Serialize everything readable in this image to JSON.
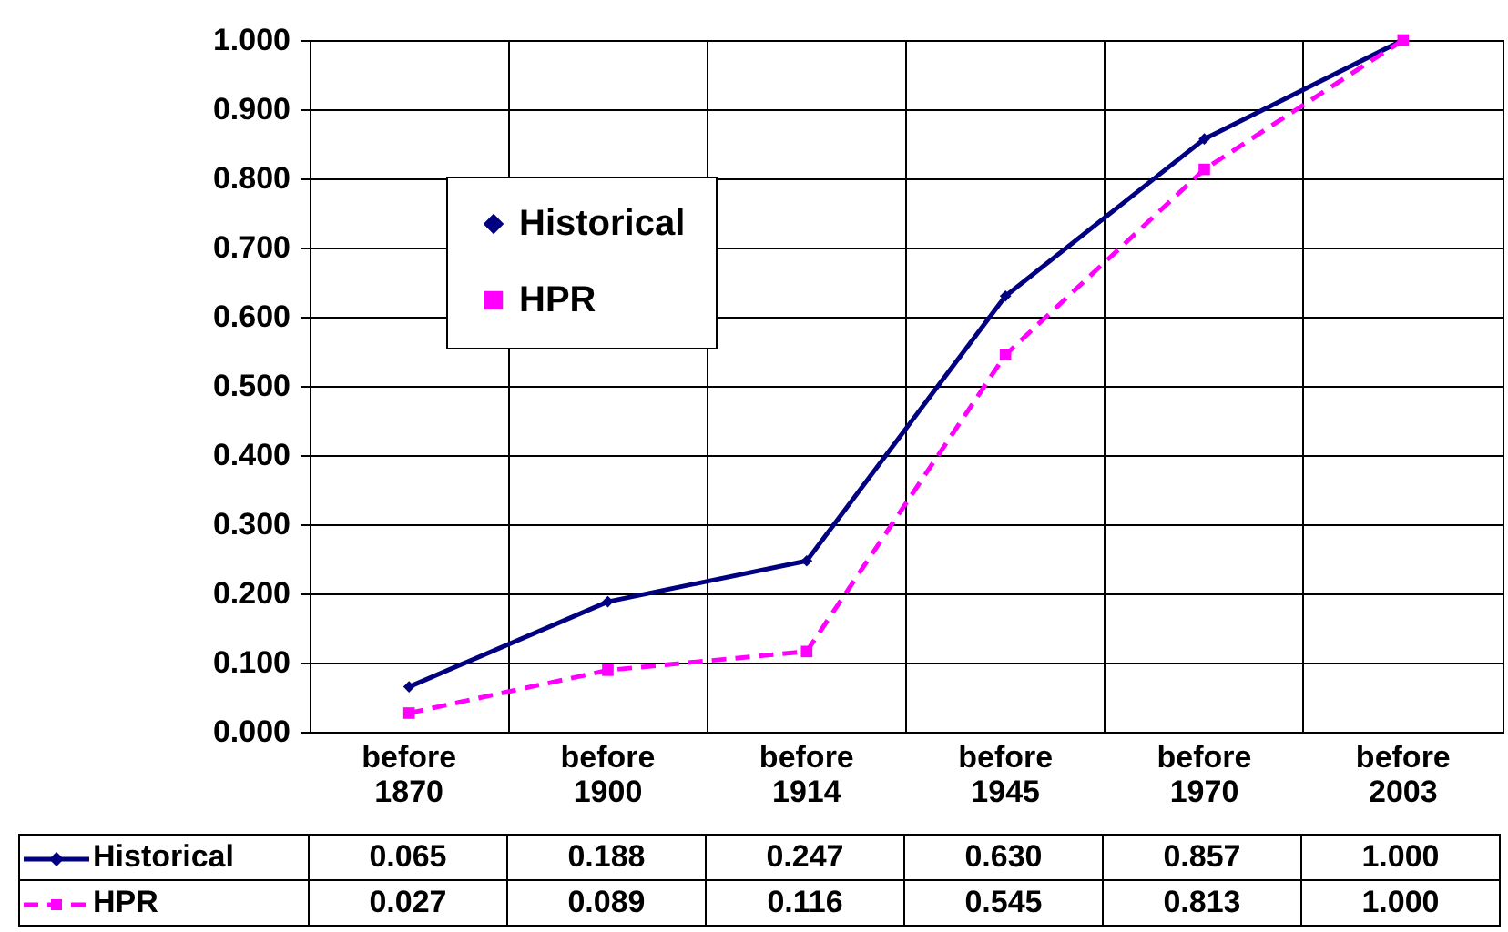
{
  "chart_data": {
    "type": "line",
    "categories": [
      "before 1870",
      "before 1900",
      "before 1914",
      "before 1945",
      "before 1970",
      "before 2003"
    ],
    "series": [
      {
        "name": "Historical",
        "color": "#000080",
        "values": [
          0.065,
          0.188,
          0.247,
          0.63,
          0.857,
          1.0
        ],
        "value_labels": [
          "0.065",
          "0.188",
          "0.247",
          "0.630",
          "0.857",
          "1.000"
        ],
        "marker": "diamond",
        "line_style": "solid"
      },
      {
        "name": "HPR",
        "color": "#ff00ff",
        "values": [
          0.027,
          0.089,
          0.116,
          0.545,
          0.813,
          1.0
        ],
        "value_labels": [
          "0.027",
          "0.089",
          "0.116",
          "0.545",
          "0.813",
          "1.000"
        ],
        "marker": "square",
        "line_style": "dashed"
      }
    ],
    "ylim": [
      0,
      1
    ],
    "yticks": [
      {
        "value": 0,
        "label": "0.000"
      },
      {
        "value": 0.1,
        "label": "0.100"
      },
      {
        "value": 0.2,
        "label": "0.200"
      },
      {
        "value": 0.3,
        "label": "0.300"
      },
      {
        "value": 0.4,
        "label": "0.400"
      },
      {
        "value": 0.5,
        "label": "0.500"
      },
      {
        "value": 0.6,
        "label": "0.600"
      },
      {
        "value": 0.7,
        "label": "0.700"
      },
      {
        "value": 0.8,
        "label": "0.800"
      },
      {
        "value": 0.9,
        "label": "0.900"
      },
      {
        "value": 1,
        "label": "1.000"
      }
    ],
    "grid": true,
    "legend": "top left"
  }
}
